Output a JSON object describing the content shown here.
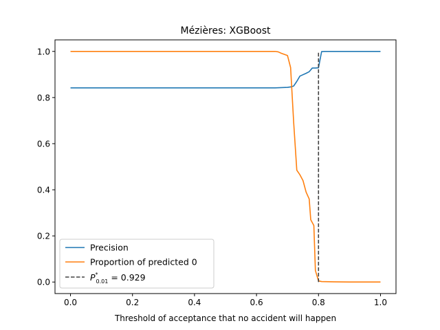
{
  "chart_data": {
    "type": "line",
    "title": "Mézières: XGBoost",
    "xlabel": "Threshold of acceptance that no accident will happen",
    "ylabel": "",
    "xlim": [
      -0.05,
      1.05
    ],
    "ylim": [
      -0.05,
      1.05
    ],
    "xticks": [
      0.0,
      0.2,
      0.4,
      0.6,
      0.8,
      1.0
    ],
    "xtick_labels": [
      "0.0",
      "0.2",
      "0.4",
      "0.6",
      "0.8",
      "1.0"
    ],
    "yticks": [
      0.0,
      0.2,
      0.4,
      0.6,
      0.8,
      1.0
    ],
    "ytick_labels": [
      "0.0",
      "0.2",
      "0.4",
      "0.6",
      "0.8",
      "1.0"
    ],
    "legend_position": "lower-left",
    "series": [
      {
        "name": "Precision",
        "color": "#1f77b4",
        "x": [
          0.0,
          0.1,
          0.2,
          0.3,
          0.4,
          0.5,
          0.6,
          0.66,
          0.7,
          0.71,
          0.72,
          0.73,
          0.74,
          0.76,
          0.77,
          0.78,
          0.79,
          0.8,
          0.81,
          0.82,
          0.9,
          1.0
        ],
        "y": [
          0.842,
          0.842,
          0.842,
          0.842,
          0.842,
          0.842,
          0.842,
          0.842,
          0.844,
          0.846,
          0.85,
          0.87,
          0.893,
          0.905,
          0.912,
          0.928,
          0.928,
          0.929,
          0.999,
          1.0,
          1.0,
          1.0
        ]
      },
      {
        "name": "Proportion of predicted 0",
        "color": "#ff7f0e",
        "x": [
          0.0,
          0.1,
          0.2,
          0.3,
          0.4,
          0.5,
          0.6,
          0.66,
          0.67,
          0.68,
          0.7,
          0.71,
          0.72,
          0.73,
          0.74,
          0.75,
          0.76,
          0.77,
          0.775,
          0.785,
          0.79,
          0.8,
          0.81,
          0.85,
          0.9,
          1.0
        ],
        "y": [
          1.0,
          1.0,
          1.0,
          1.0,
          1.0,
          1.0,
          1.0,
          1.0,
          0.998,
          0.992,
          0.982,
          0.93,
          0.69,
          0.485,
          0.465,
          0.44,
          0.39,
          0.36,
          0.27,
          0.245,
          0.05,
          0.005,
          0.002,
          0.001,
          0.0,
          0.0
        ]
      }
    ],
    "vline": {
      "label": "P*0.01 = 0.929",
      "legend_main": "P",
      "legend_sup": "*",
      "legend_sub": "0.01",
      "legend_value": " = 0.929",
      "x": 0.8,
      "ymin": 0.0,
      "ymax": 1.0,
      "color": "#404040",
      "style": "dashed"
    }
  }
}
